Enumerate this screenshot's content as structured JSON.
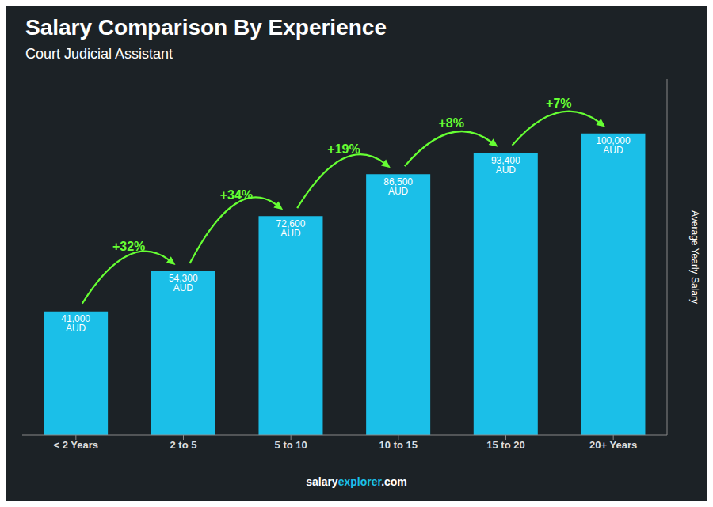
{
  "chart_data": {
    "type": "bar",
    "title": "Salary Comparison By Experience",
    "subtitle": "Court Judicial Assistant",
    "categories": [
      "< 2 Years",
      "2 to 5",
      "5 to 10",
      "10 to 15",
      "15 to 20",
      "20+ Years"
    ],
    "values": [
      41000,
      54300,
      72600,
      86500,
      93400,
      100000
    ],
    "value_labels": [
      "41,000 AUD",
      "54,300 AUD",
      "72,600 AUD",
      "86,500 AUD",
      "93,400 AUD",
      "100,000 AUD"
    ],
    "data_labels": true,
    "color": "#1BBFE8",
    "y_label": "Average Yearly Salary",
    "ylim": [
      0,
      118000
    ],
    "tick_labels": "x",
    "grid": false,
    "annotations": [
      {
        "text": "+32%",
        "from": "< 2 Years",
        "to": "2 to 5",
        "color": "#66ff33"
      },
      {
        "text": "+34%",
        "from": "2 to 5",
        "to": "5 to 10",
        "color": "#66ff33"
      },
      {
        "text": "+19%",
        "from": "5 to 10",
        "to": "10 to 15",
        "color": "#66ff33"
      },
      {
        "text": "+8%",
        "from": "10 to 15",
        "to": "15 to 20",
        "color": "#66ff33"
      },
      {
        "text": "+7%",
        "from": "15 to 20",
        "to": "20+ Years",
        "color": "#66ff33"
      }
    ],
    "footer": [
      {
        "text": "salary"
      },
      {
        "text": "explorer",
        "color": "#1BBFE8"
      },
      {
        "text": ".com"
      }
    ]
  }
}
